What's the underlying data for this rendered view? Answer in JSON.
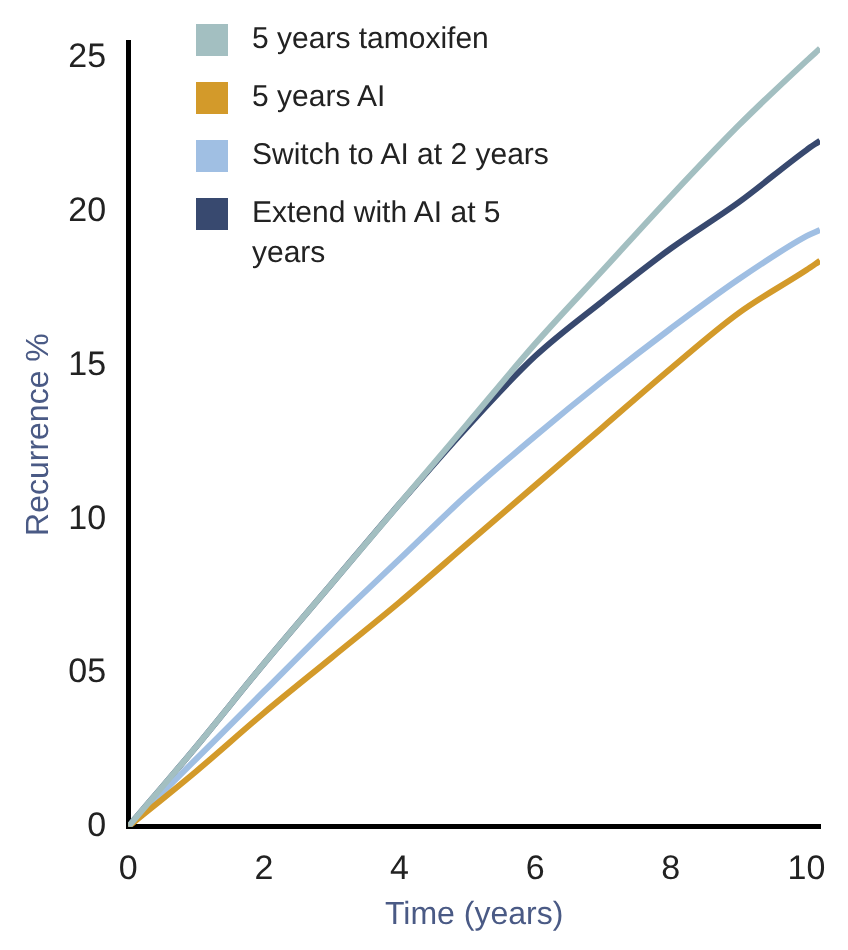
{
  "chart_data": {
    "type": "line",
    "xlabel": "Time (years)",
    "ylabel": "Recurrence %",
    "x": [
      0,
      1,
      2,
      3,
      4,
      5,
      6,
      7,
      8,
      9,
      10,
      10.2
    ],
    "series": [
      {
        "name": "5 years tamoxifen",
        "color": "#a3bfc1",
        "values": [
          0,
          2.6,
          5.3,
          7.9,
          10.5,
          13.1,
          15.7,
          18.1,
          20.5,
          22.8,
          24.9,
          25.3
        ]
      },
      {
        "name": "5 years AI",
        "color": "#d39a2a",
        "values": [
          0,
          1.8,
          3.7,
          5.5,
          7.3,
          9.2,
          11.1,
          13.0,
          14.9,
          16.7,
          18.1,
          18.4
        ]
      },
      {
        "name": "Switch to AI at 2 years",
        "color": "#a0bfe3",
        "values": [
          0,
          2.2,
          4.4,
          6.6,
          8.7,
          10.8,
          12.7,
          14.5,
          16.2,
          17.8,
          19.2,
          19.4
        ]
      },
      {
        "name": "Extend with AI at 5 years",
        "color": "#38496f",
        "values": [
          0,
          2.6,
          5.3,
          7.9,
          10.5,
          13.0,
          15.3,
          17.1,
          18.8,
          20.3,
          22.0,
          22.3
        ]
      }
    ],
    "xlim": [
      0,
      10.2
    ],
    "xticks": [
      0,
      2,
      4,
      6,
      8,
      10
    ],
    "ylim": [
      0,
      25.5
    ],
    "yticks": [
      0,
      {
        "value": 5,
        "label": "05"
      },
      10,
      15,
      20,
      25
    ],
    "grid": false,
    "legend": "top left",
    "marker": "none",
    "line_style": "solid"
  }
}
